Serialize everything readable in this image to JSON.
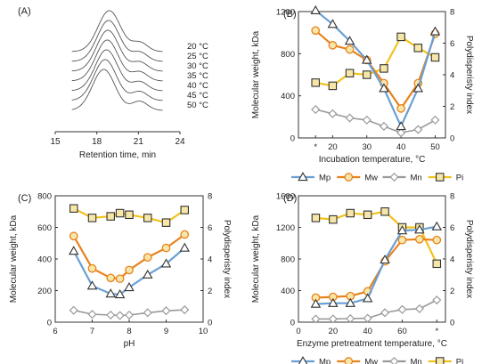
{
  "colors": {
    "Mp": "#6a9fd4",
    "Mw": "#e8821e",
    "Mn": "#9a9a9a",
    "Pi": "#f2c21b",
    "marker_fill": "#f6e7a8",
    "axis": "#333333"
  },
  "chart_data": [
    {
      "panel": "(A)",
      "type": "line",
      "xlabel": "Retention time, min",
      "xlim": [
        15,
        24
      ],
      "xticks": [
        15,
        18,
        21,
        24
      ],
      "y_axis_shown": false,
      "trace_labels": [
        "20 °C",
        "25 °C",
        "30 °C",
        "35 °C",
        "40 °C",
        "45 °C",
        "50 °C"
      ],
      "peak_x": [
        18.9,
        18.85,
        18.8,
        18.75,
        18.7,
        18.6,
        18.5
      ]
    },
    {
      "panel": "(B)",
      "type": "line",
      "xlabel": "Incubation temperature, °C",
      "ylabel": "Molecular weight, kDa",
      "y2label": "Polydisperisty index",
      "xlim": [
        10,
        53
      ],
      "ylim": [
        0,
        1200
      ],
      "y2lim": [
        0,
        8
      ],
      "xtick_labels": [
        "*",
        "20",
        "30",
        "40",
        "50"
      ],
      "xtick_values": [
        15,
        20,
        30,
        40,
        50
      ],
      "yticks": [
        0,
        400,
        800,
        1200
      ],
      "y2ticks": [
        0,
        2,
        4,
        6,
        8
      ],
      "x": [
        15,
        20,
        25,
        30,
        35,
        40,
        45,
        50
      ],
      "series": [
        {
          "name": "Mp",
          "axis": "left",
          "marker": "triangle",
          "values": [
            1210,
            1080,
            920,
            740,
            470,
            110,
            470,
            1010
          ]
        },
        {
          "name": "Mw",
          "axis": "left",
          "marker": "circle",
          "values": [
            1020,
            880,
            840,
            740,
            520,
            280,
            520,
            990
          ]
        },
        {
          "name": "Mn",
          "axis": "left",
          "marker": "diamond",
          "values": [
            270,
            230,
            190,
            170,
            110,
            50,
            80,
            170
          ]
        },
        {
          "name": "Pi",
          "axis": "right",
          "marker": "square",
          "values": [
            3.5,
            3.3,
            4.1,
            4.0,
            4.4,
            6.4,
            5.7,
            5.1
          ]
        }
      ],
      "legend": [
        "Mp",
        "Mw",
        "Mn",
        "Pi"
      ],
      "legend_position": "bottom"
    },
    {
      "panel": "(C)",
      "type": "line",
      "xlabel": "pH",
      "ylabel": "Molecular weight, kDa",
      "y2label": "Polydisperisty index",
      "xlim": [
        6,
        10
      ],
      "ylim": [
        0,
        800
      ],
      "y2lim": [
        0,
        8
      ],
      "xticks": [
        6,
        7,
        8,
        9,
        10
      ],
      "yticks": [
        0,
        200,
        400,
        600,
        800
      ],
      "y2ticks": [
        0,
        2,
        4,
        6,
        8
      ],
      "x": [
        6.5,
        7.0,
        7.5,
        7.75,
        8.0,
        8.5,
        9.0,
        9.5
      ],
      "series": [
        {
          "name": "Mp",
          "axis": "left",
          "marker": "triangle",
          "values": [
            450,
            230,
            180,
            175,
            220,
            300,
            370,
            470
          ]
        },
        {
          "name": "Mw",
          "axis": "left",
          "marker": "circle",
          "values": [
            545,
            340,
            280,
            275,
            330,
            410,
            470,
            555
          ]
        },
        {
          "name": "Mn",
          "axis": "left",
          "marker": "diamond",
          "values": [
            75,
            50,
            45,
            42,
            45,
            60,
            72,
            78
          ]
        },
        {
          "name": "Pi",
          "axis": "right",
          "marker": "square",
          "values": [
            7.2,
            6.6,
            6.7,
            6.9,
            6.8,
            6.6,
            6.3,
            7.1
          ]
        }
      ]
    },
    {
      "panel": "(D)",
      "type": "line",
      "xlabel": "Enzyme pretreatment temperature, °C",
      "ylabel": "Molecular weight, kDa",
      "y2label": "Polydisperisty index",
      "xlim": [
        0,
        85
      ],
      "ylim": [
        0,
        1600
      ],
      "y2lim": [
        0,
        8
      ],
      "xtick_labels": [
        "0",
        "20",
        "40",
        "60",
        "*"
      ],
      "xtick_values": [
        0,
        20,
        40,
        60,
        80
      ],
      "yticks": [
        0,
        400,
        800,
        1200,
        1600
      ],
      "y2ticks": [
        0,
        2,
        4,
        6,
        8
      ],
      "x": [
        10,
        20,
        30,
        40,
        50,
        60,
        70,
        80
      ],
      "series": [
        {
          "name": "Mp",
          "axis": "left",
          "marker": "triangle",
          "values": [
            230,
            240,
            240,
            300,
            790,
            1160,
            1170,
            1210
          ]
        },
        {
          "name": "Mw",
          "axis": "left",
          "marker": "circle",
          "values": [
            310,
            320,
            330,
            390,
            770,
            1040,
            1050,
            1040
          ]
        },
        {
          "name": "Mn",
          "axis": "left",
          "marker": "diamond",
          "values": [
            40,
            40,
            45,
            50,
            120,
            160,
            170,
            280
          ]
        },
        {
          "name": "Pi",
          "axis": "right",
          "marker": "square",
          "values": [
            6.6,
            6.5,
            6.9,
            6.8,
            7.0,
            6.0,
            6.0,
            3.7
          ]
        }
      ],
      "legend": [
        "Mp",
        "Mw",
        "Mn",
        "Pi"
      ],
      "legend_position": "bottom"
    }
  ]
}
